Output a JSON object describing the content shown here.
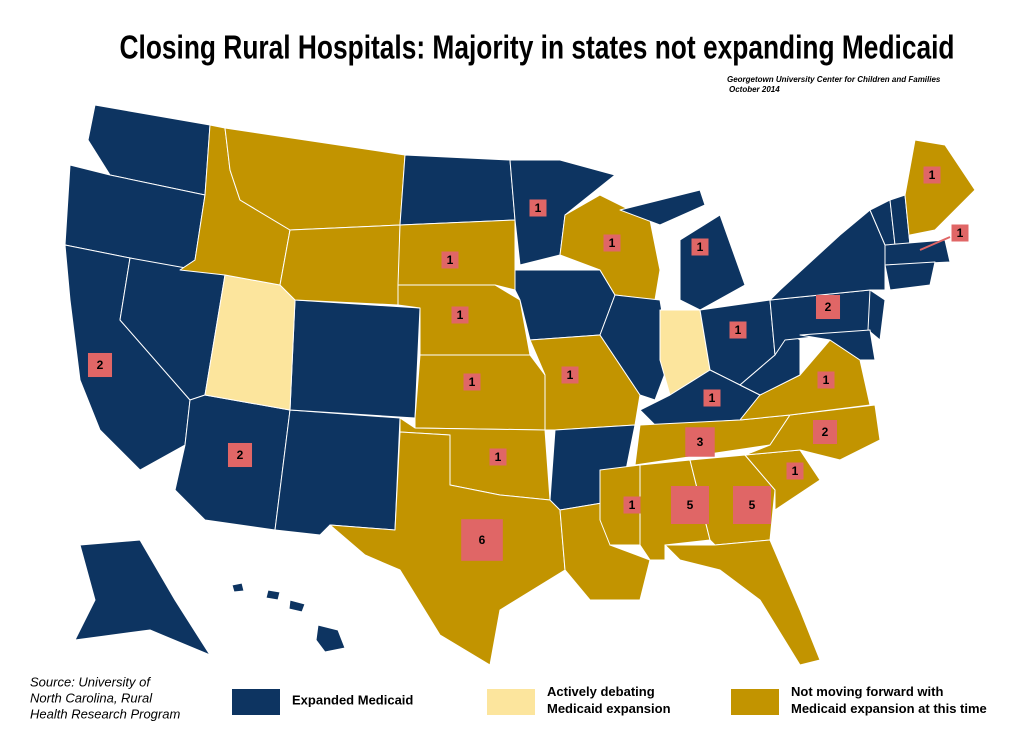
{
  "header": {
    "title": "Closing Rural Hospitals: Majority in states not expanding Medicaid",
    "credit": [
      "Georgetown University  Center for Children and Families",
      "October 2014"
    ]
  },
  "source": [
    "Source: University of",
    "North Carolina, Rural",
    "Health Research Program"
  ],
  "legend": [
    {
      "label": [
        "Expanded Medicaid"
      ],
      "color": "#0d3461"
    },
    {
      "label": [
        "Actively debating",
        "Medicaid expansion"
      ],
      "color": "#fce59d"
    },
    {
      "label": [
        "Not moving forward with",
        "Medicaid expansion at this time"
      ],
      "color": "#c29400"
    }
  ],
  "marker_color": "#e06666",
  "closures": [
    1,
    1,
    1,
    1,
    1,
    1,
    1,
    1,
    1,
    2,
    1,
    2,
    3,
    1,
    1,
    2,
    2,
    6,
    1,
    5,
    5,
    1,
    1
  ]
}
